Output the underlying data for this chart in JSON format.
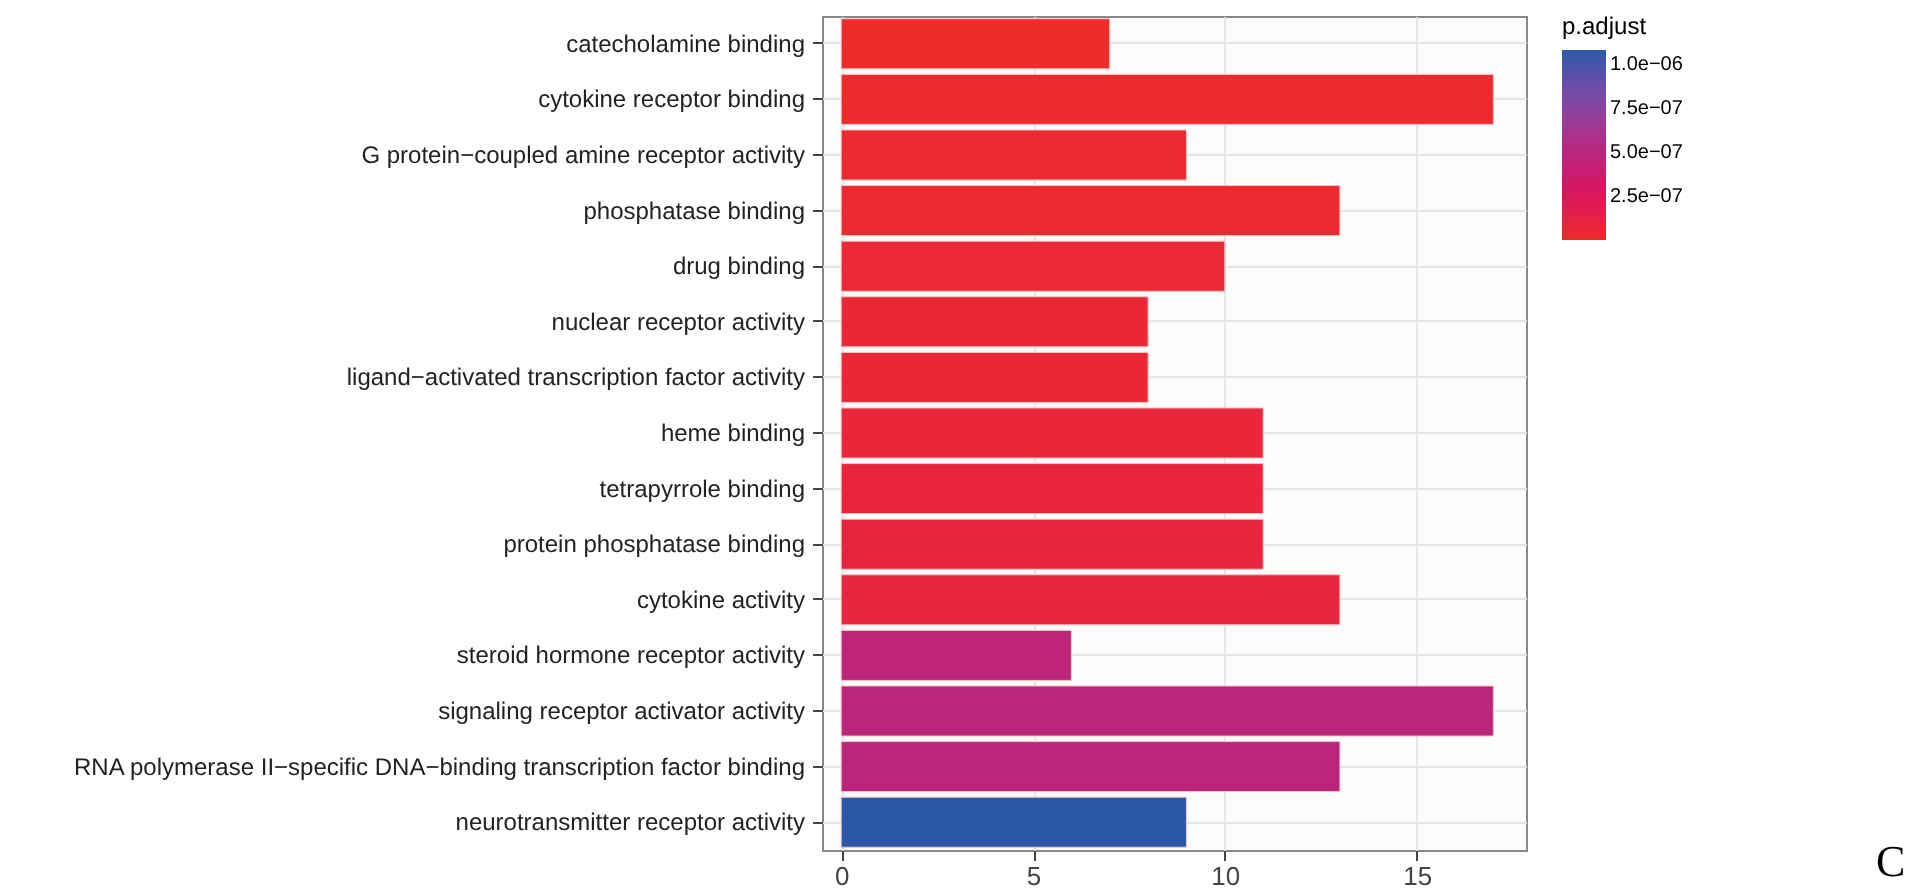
{
  "chart_data": {
    "type": "bar",
    "orientation": "horizontal",
    "categories": [
      "catecholamine binding",
      "cytokine receptor binding",
      "G protein−coupled amine receptor activity",
      "phosphatase binding",
      "drug binding",
      "nuclear receptor activity",
      "ligand−activated transcription factor activity",
      "heme binding",
      "tetrapyrrole binding",
      "protein phosphatase binding",
      "cytokine activity",
      "steroid hormone receptor activity",
      "signaling receptor activator activity",
      "RNA polymerase II−specific DNA−binding transcription factor binding",
      "neurotransmitter receptor activity"
    ],
    "values": [
      7,
      17,
      9,
      13,
      10,
      8,
      8,
      11,
      11,
      11,
      13,
      6,
      17,
      13,
      9
    ],
    "cvalues": [
      1e-08,
      1.5e-08,
      2e-08,
      3e-08,
      4e-08,
      5e-08,
      6e-08,
      8e-08,
      9e-08,
      1e-07,
      1.1e-07,
      4.6e-07,
      4.8e-07,
      4.9e-07,
      1.07e-06
    ],
    "colors": [
      "#ee2a2a",
      "#ee2a2c",
      "#ed292f",
      "#ec2931",
      "#eb2833",
      "#ea2735",
      "#ea2737",
      "#e9263a",
      "#e8253c",
      "#e8253e",
      "#e72640",
      "#be247a",
      "#bc257b",
      "#bb257c",
      "#2b58a6"
    ],
    "clabel": "p.adjust",
    "clim": [
      0,
      1.08e-06
    ],
    "cticks": [
      {
        "value": 2.5e-07,
        "label": "2.5e−07"
      },
      {
        "value": 5e-07,
        "label": "5.0e−07"
      },
      {
        "value": 7.5e-07,
        "label": "7.5e−07"
      },
      {
        "value": 1e-06,
        "label": "1.0e−06"
      }
    ],
    "xlim": [
      -0.5,
      17.85
    ],
    "xticks": [
      0,
      5,
      10,
      15
    ],
    "grid": true,
    "annotations": [
      "C"
    ]
  }
}
